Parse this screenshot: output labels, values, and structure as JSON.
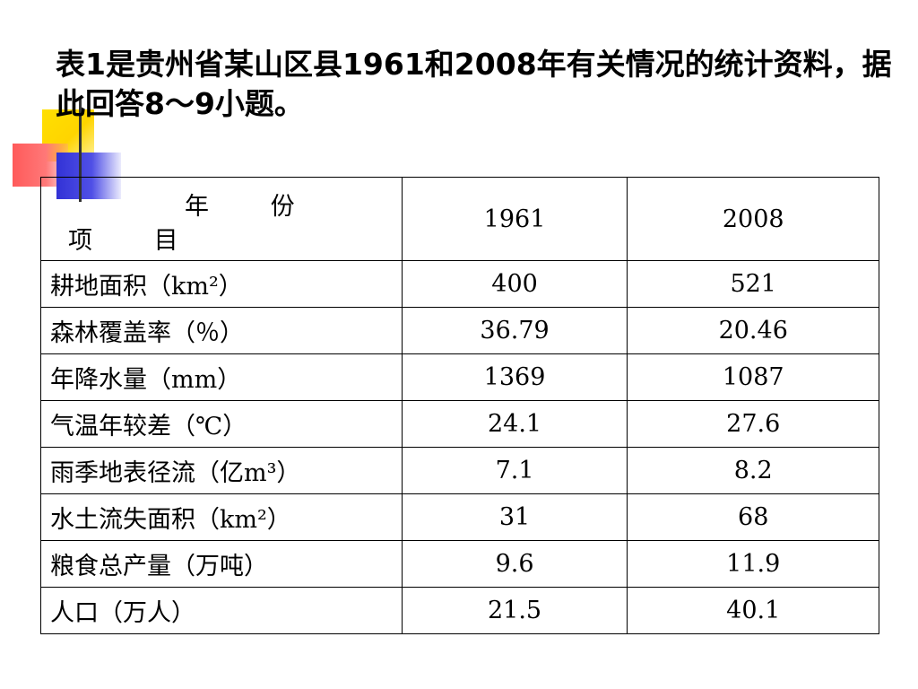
{
  "title": "表1是贵州省某山区县1961和2008年有关情况的统计资料，据此回答8～9小题。",
  "table": {
    "header": {
      "year_label": "年 份",
      "item_label": "项 目",
      "years": [
        "1961",
        "2008"
      ]
    },
    "rows": [
      {
        "label": "耕地面积（km²）",
        "v1961": "400",
        "v2008": "521"
      },
      {
        "label": "森林覆盖率（％）",
        "v1961": "36.79",
        "v2008": "20.46"
      },
      {
        "label": "年降水量（mm）",
        "v1961": "1369",
        "v2008": "1087"
      },
      {
        "label": "气温年较差（℃）",
        "v1961": "24.1",
        "v2008": "27.6"
      },
      {
        "label": "雨季地表径流（亿m³）",
        "v1961": "7.1",
        "v2008": "8.2"
      },
      {
        "label": "水土流失面积（km²）",
        "v1961": "31",
        "v2008": "68"
      },
      {
        "label": "粮食总产量（万吨）",
        "v1961": "9.6",
        "v2008": "11.9"
      },
      {
        "label": "人口（万人）",
        "v1961": "21.5",
        "v2008": "40.1"
      }
    ]
  }
}
